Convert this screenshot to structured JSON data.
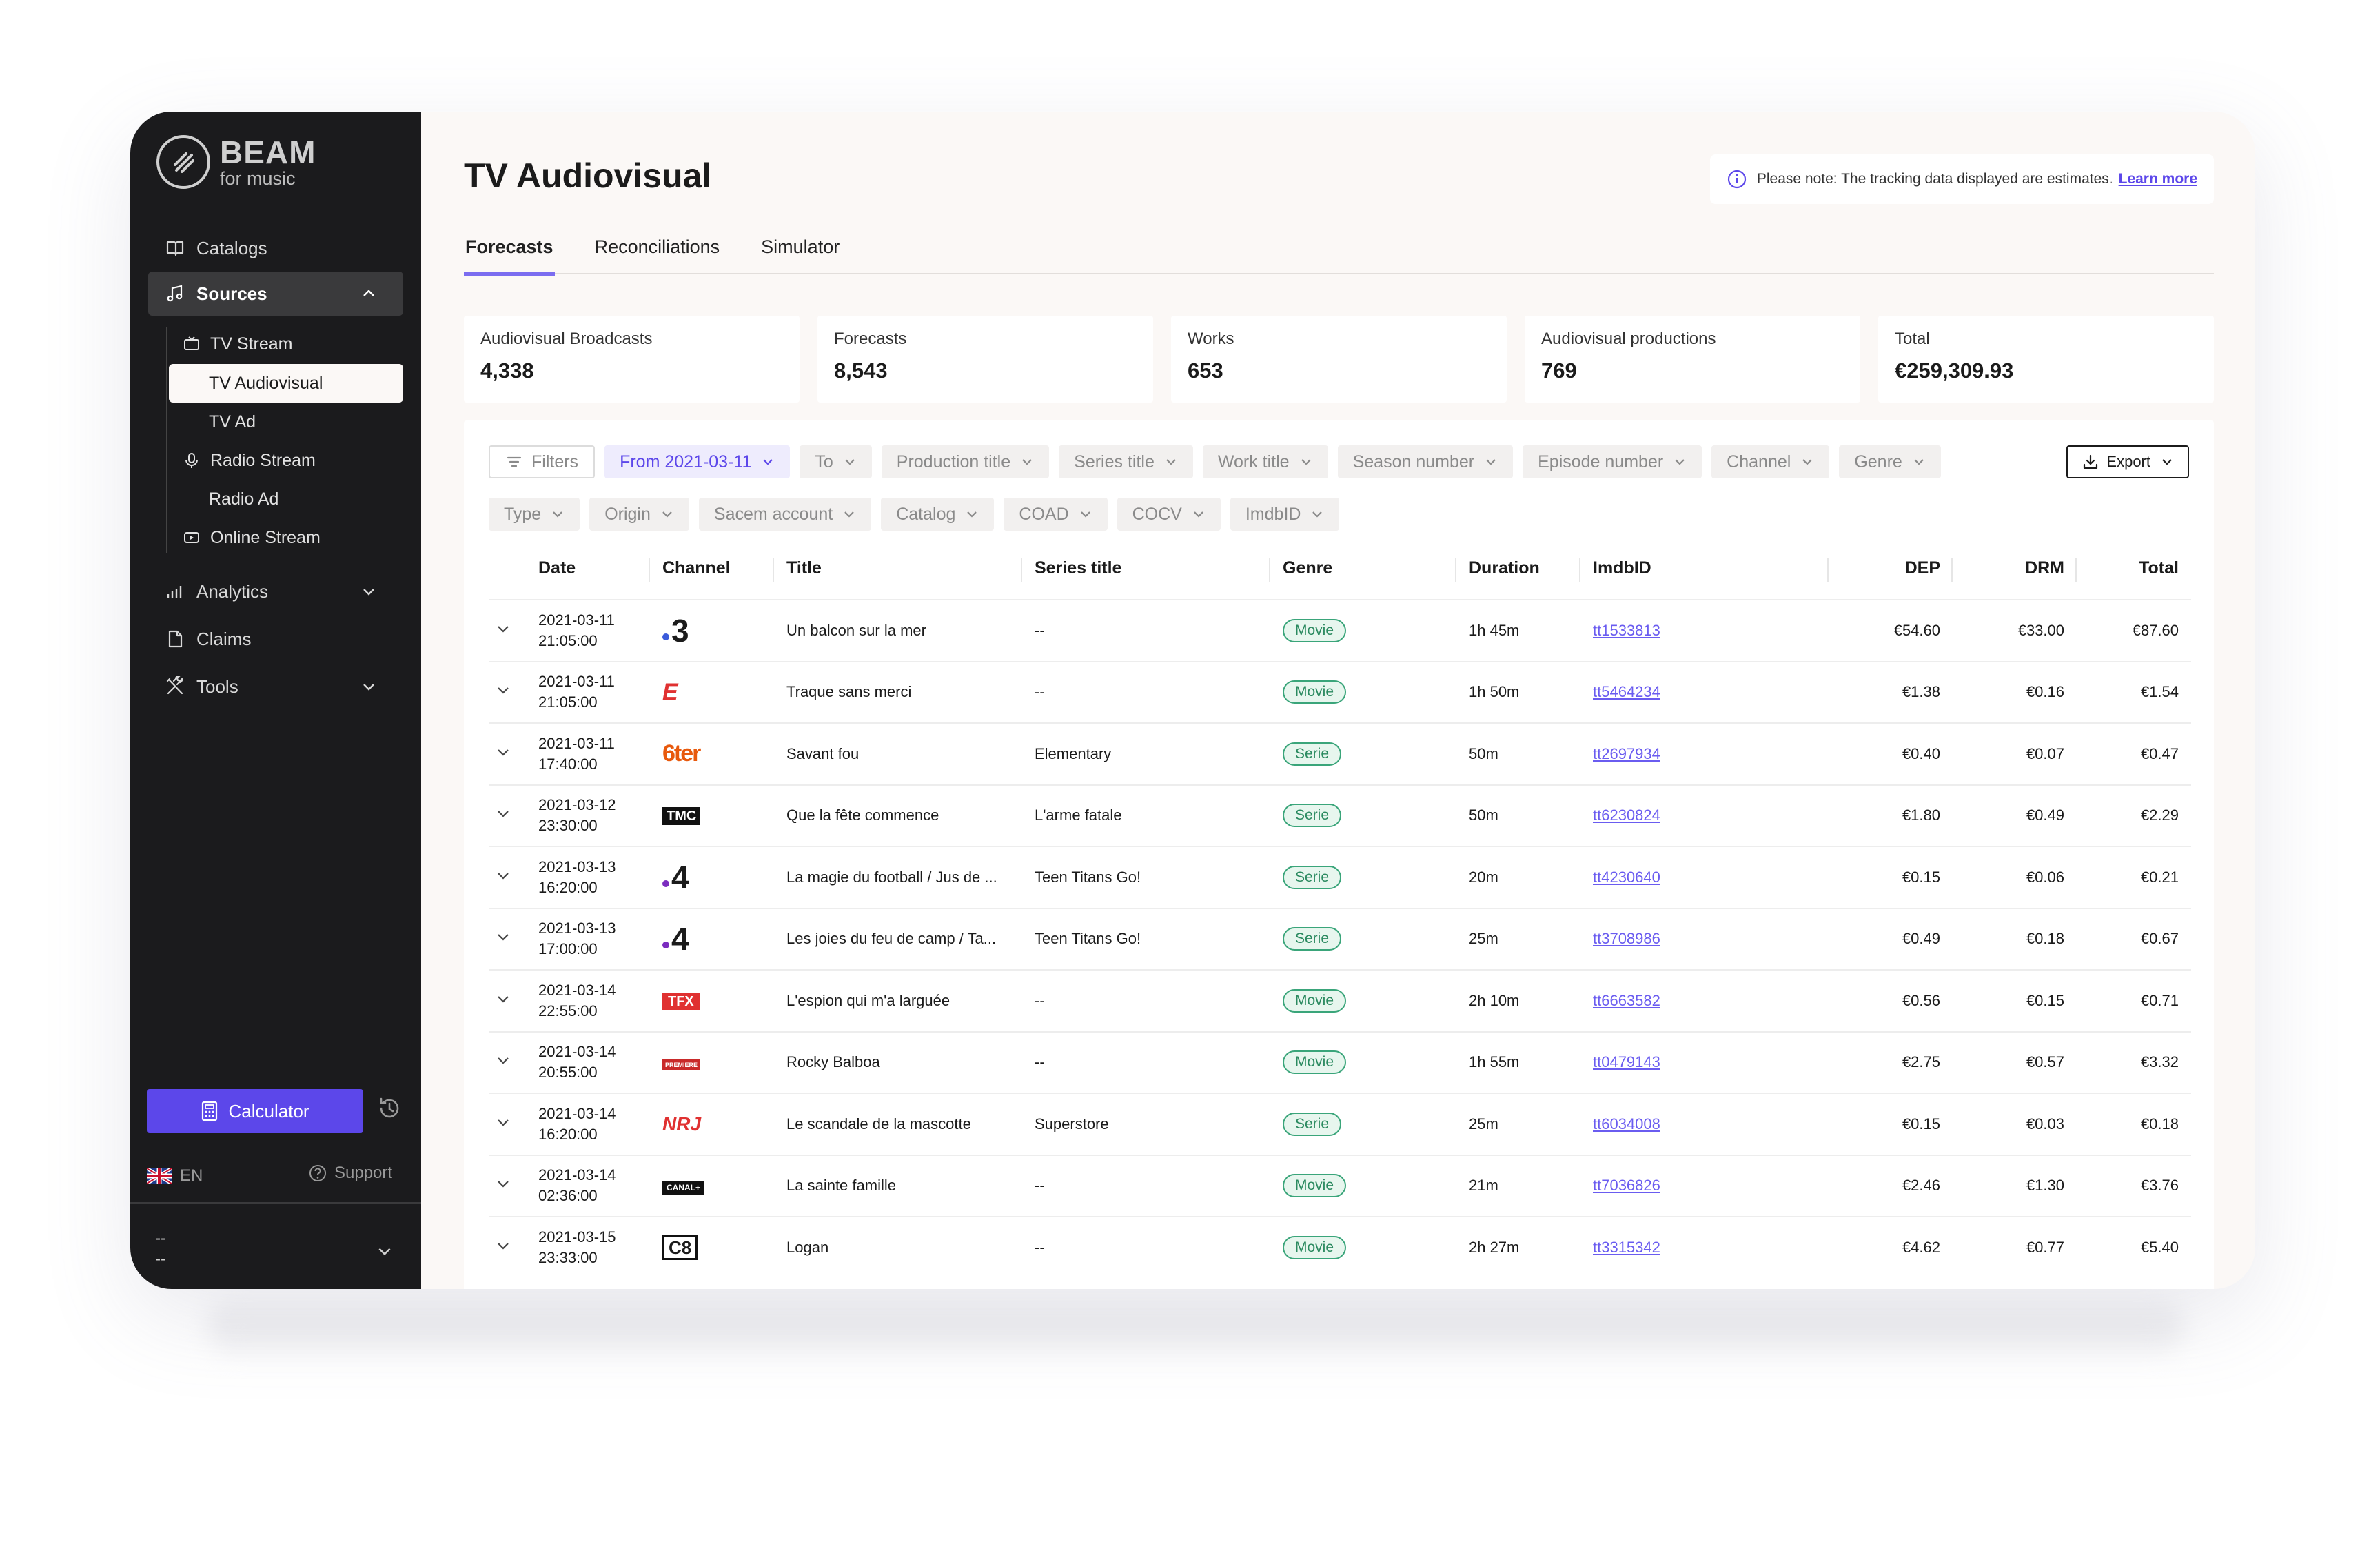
{
  "brand": {
    "name": "BEAM",
    "tagline": "for music"
  },
  "sidebar": {
    "items": [
      {
        "label": "Catalogs"
      },
      {
        "label": "Sources"
      },
      {
        "label": "Analytics"
      },
      {
        "label": "Claims"
      },
      {
        "label": "Tools"
      }
    ],
    "sources_sub": [
      {
        "label": "TV Stream"
      },
      {
        "label": "TV Audiovisual"
      },
      {
        "label": "TV Ad"
      },
      {
        "label": "Radio Stream"
      },
      {
        "label": "Radio Ad"
      },
      {
        "label": "Online Stream"
      }
    ],
    "calculator_label": "Calculator",
    "language": "EN",
    "support_label": "Support",
    "account_line1": "--",
    "account_line2": "--"
  },
  "page": {
    "title": "TV Audiovisual",
    "notice": "Please note: The tracking data displayed are estimates.",
    "notice_link": "Learn more",
    "tabs": [
      {
        "label": "Forecasts"
      },
      {
        "label": "Reconciliations"
      },
      {
        "label": "Simulator"
      }
    ]
  },
  "stats": [
    {
      "label": "Audiovisual Broadcasts",
      "value": "4,338"
    },
    {
      "label": "Forecasts",
      "value": "8,543"
    },
    {
      "label": "Works",
      "value": "653"
    },
    {
      "label": "Audiovisual productions",
      "value": "769"
    },
    {
      "label": "Total",
      "value": "€259,309.93"
    }
  ],
  "filters": {
    "filters_label": "Filters",
    "chips": [
      "From 2021-03-11",
      "To",
      "Production title",
      "Series title",
      "Work title",
      "Season number",
      "Episode number",
      "Channel",
      "Genre",
      "Type",
      "Origin",
      "Sacem account",
      "Catalog",
      "COAD",
      "COCV",
      "ImdbID"
    ],
    "export_label": "Export"
  },
  "table": {
    "headers": [
      "Date",
      "Channel",
      "Title",
      "Series title",
      "Genre",
      "Duration",
      "ImdbID",
      "DEP",
      "DRM",
      "Total"
    ],
    "rows": [
      {
        "date": "2021-03-11",
        "time": "21:05:00",
        "channel": "3",
        "title": "Un balcon sur la mer",
        "series": "--",
        "genre": "Movie",
        "duration": "1h 45m",
        "imdb": "tt1533813",
        "dep": "€54.60",
        "drm": "€33.00",
        "total": "€87.60"
      },
      {
        "date": "2021-03-11",
        "time": "21:05:00",
        "channel": "E",
        "title": "Traque sans merci",
        "series": "--",
        "genre": "Movie",
        "duration": "1h 50m",
        "imdb": "tt5464234",
        "dep": "€1.38",
        "drm": "€0.16",
        "total": "€1.54"
      },
      {
        "date": "2021-03-11",
        "time": "17:40:00",
        "channel": "6ter",
        "title": "Savant fou",
        "series": "Elementary",
        "genre": "Serie",
        "duration": "50m",
        "imdb": "tt2697934",
        "dep": "€0.40",
        "drm": "€0.07",
        "total": "€0.47"
      },
      {
        "date": "2021-03-12",
        "time": "23:30:00",
        "channel": "TMC",
        "title": "Que la fête commence",
        "series": "L'arme fatale",
        "genre": "Serie",
        "duration": "50m",
        "imdb": "tt6230824",
        "dep": "€1.80",
        "drm": "€0.49",
        "total": "€2.29"
      },
      {
        "date": "2021-03-13",
        "time": "16:20:00",
        "channel": "4",
        "title": "La magie du football / Jus de ...",
        "series": "Teen Titans Go!",
        "genre": "Serie",
        "duration": "20m",
        "imdb": "tt4230640",
        "dep": "€0.15",
        "drm": "€0.06",
        "total": "€0.21"
      },
      {
        "date": "2021-03-13",
        "time": "17:00:00",
        "channel": "4",
        "title": "Les joies du feu de camp / Ta...",
        "series": "Teen Titans Go!",
        "genre": "Serie",
        "duration": "25m",
        "imdb": "tt3708986",
        "dep": "€0.49",
        "drm": "€0.18",
        "total": "€0.67"
      },
      {
        "date": "2021-03-14",
        "time": "22:55:00",
        "channel": "TFX",
        "title": "L'espion qui m'a larguée",
        "series": "--",
        "genre": "Movie",
        "duration": "2h 10m",
        "imdb": "tt6663582",
        "dep": "€0.56",
        "drm": "€0.15",
        "total": "€0.71"
      },
      {
        "date": "2021-03-14",
        "time": "20:55:00",
        "channel": "PREMIERE",
        "title": "Rocky Balboa",
        "series": "--",
        "genre": "Movie",
        "duration": "1h 55m",
        "imdb": "tt0479143",
        "dep": "€2.75",
        "drm": "€0.57",
        "total": "€3.32"
      },
      {
        "date": "2021-03-14",
        "time": "16:20:00",
        "channel": "NRJ",
        "title": "Le scandale de la mascotte",
        "series": "Superstore",
        "genre": "Serie",
        "duration": "25m",
        "imdb": "tt6034008",
        "dep": "€0.15",
        "drm": "€0.03",
        "total": "€0.18"
      },
      {
        "date": "2021-03-14",
        "time": "02:36:00",
        "channel": "CANAL+",
        "title": "La sainte famille",
        "series": "--",
        "genre": "Movie",
        "duration": "21m",
        "imdb": "tt7036826",
        "dep": "€2.46",
        "drm": "€1.30",
        "total": "€3.76"
      },
      {
        "date": "2021-03-15",
        "time": "23:33:00",
        "channel": "C8",
        "title": "Logan",
        "series": "--",
        "genre": "Movie",
        "duration": "2h 27m",
        "imdb": "tt3315342",
        "dep": "€4.62",
        "drm": "€0.77",
        "total": "€5.40"
      }
    ]
  },
  "colors": {
    "accent": "#5c47ea",
    "sidebar_bg": "#1b1b1d",
    "genre_green": "#3aa57a"
  }
}
